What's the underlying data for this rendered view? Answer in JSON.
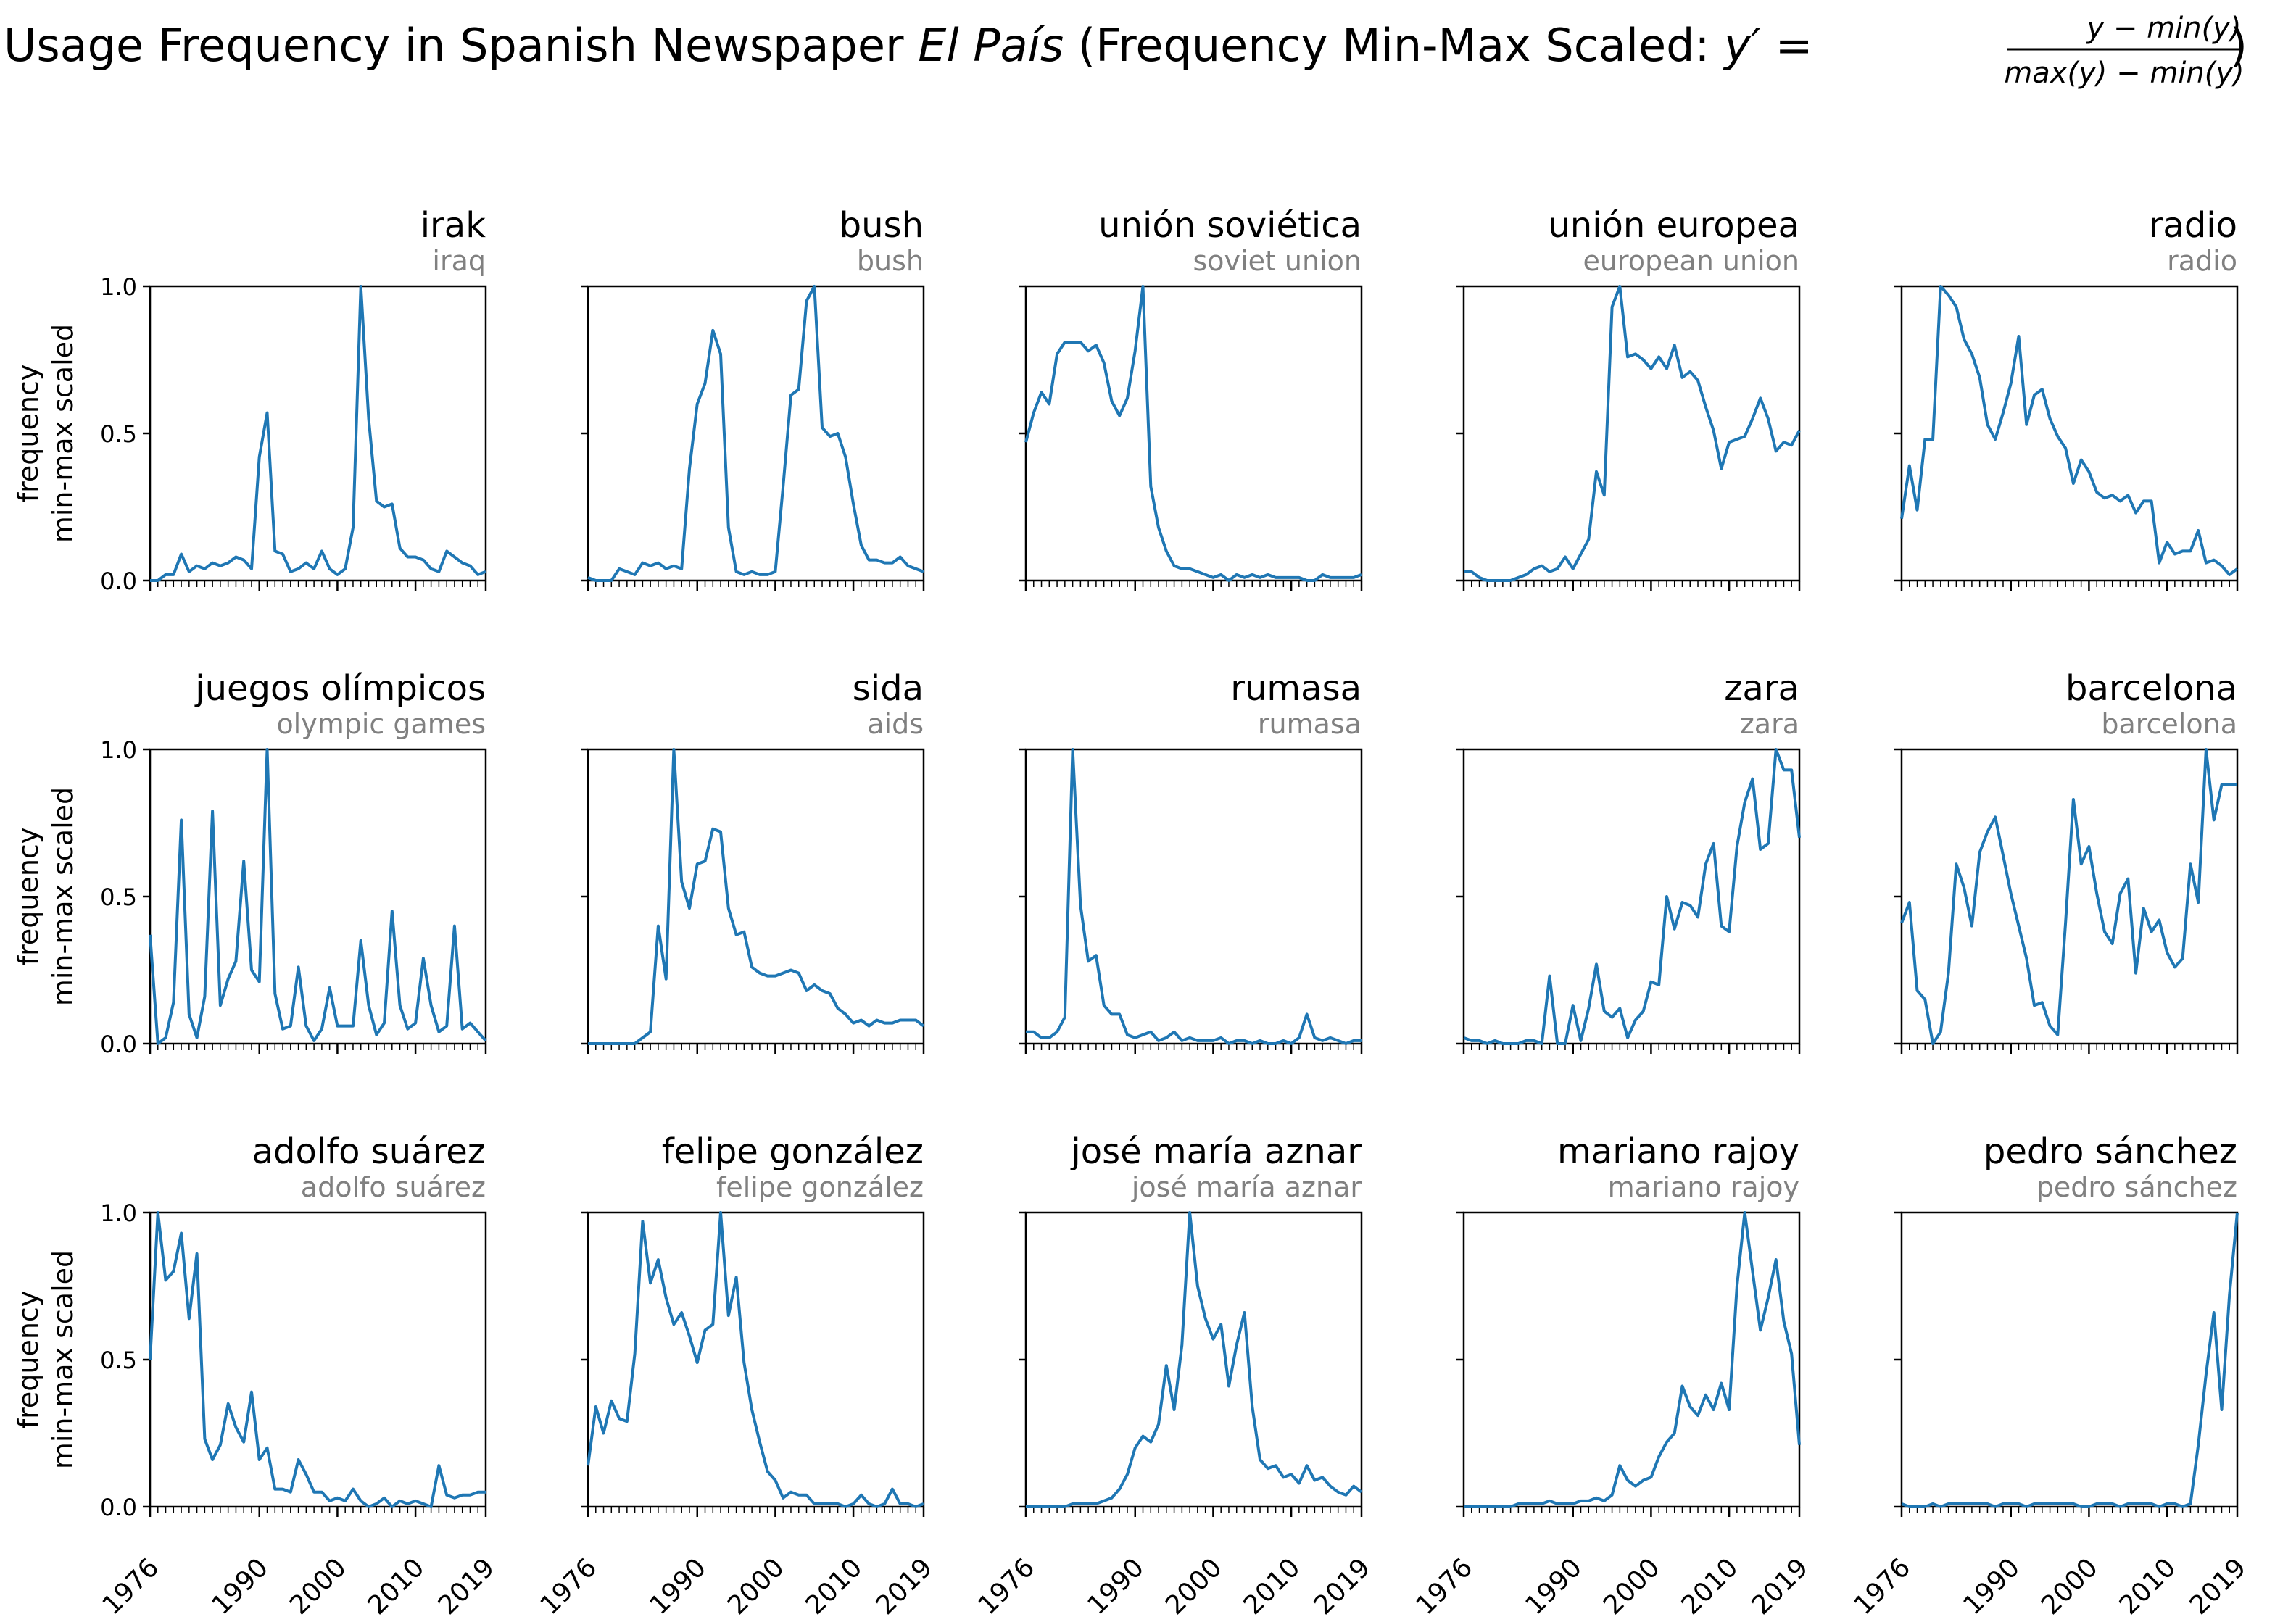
{
  "figure": {
    "title_prefix": "Word Usage Frequency in Spanish Newspaper ",
    "title_italic": "El País",
    "title_suffix": " (Frequency Min-Max Scaled: ",
    "formula_lhs": "y′ = ",
    "formula_numerator": "y − min(y)",
    "formula_denominator": "max(y) − min(y)",
    "title_close": ")",
    "ylabel_line1": "frequency",
    "ylabel_line2": "min-max scaled",
    "line_color": "#1f77b4",
    "subtitle_color": "#808080"
  },
  "chart_data": {
    "type": "line",
    "x": [
      1976,
      1977,
      1978,
      1979,
      1980,
      1981,
      1982,
      1983,
      1984,
      1985,
      1986,
      1987,
      1988,
      1989,
      1990,
      1991,
      1992,
      1993,
      1994,
      1995,
      1996,
      1997,
      1998,
      1999,
      2000,
      2001,
      2002,
      2003,
      2004,
      2005,
      2006,
      2007,
      2008,
      2009,
      2010,
      2011,
      2012,
      2013,
      2014,
      2015,
      2016,
      2017,
      2018,
      2019
    ],
    "xticks": [
      1976,
      1990,
      2000,
      2010,
      2019
    ],
    "ylim": [
      0,
      1
    ],
    "yticks": [
      "0.0",
      "0.5",
      "1.0"
    ],
    "panels": [
      {
        "title": "irak",
        "subtitle": "iraq",
        "values": [
          0.0,
          0.0,
          0.02,
          0.02,
          0.09,
          0.03,
          0.05,
          0.04,
          0.06,
          0.05,
          0.06,
          0.08,
          0.07,
          0.04,
          0.42,
          0.57,
          0.1,
          0.09,
          0.03,
          0.04,
          0.06,
          0.04,
          0.1,
          0.04,
          0.02,
          0.04,
          0.18,
          1.0,
          0.55,
          0.27,
          0.25,
          0.26,
          0.11,
          0.08,
          0.08,
          0.07,
          0.04,
          0.03,
          0.1,
          0.08,
          0.06,
          0.05,
          0.02,
          0.03
        ]
      },
      {
        "title": "bush",
        "subtitle": "bush",
        "values": [
          0.01,
          0.0,
          0.0,
          0.0,
          0.04,
          0.03,
          0.02,
          0.06,
          0.05,
          0.06,
          0.04,
          0.05,
          0.04,
          0.38,
          0.6,
          0.67,
          0.85,
          0.77,
          0.18,
          0.03,
          0.02,
          0.03,
          0.02,
          0.02,
          0.03,
          0.32,
          0.63,
          0.65,
          0.95,
          1.0,
          0.52,
          0.49,
          0.5,
          0.42,
          0.26,
          0.12,
          0.07,
          0.07,
          0.06,
          0.06,
          0.08,
          0.05,
          0.04,
          0.03
        ]
      },
      {
        "title": "unión soviética",
        "subtitle": "soviet union",
        "values": [
          0.47,
          0.57,
          0.64,
          0.6,
          0.77,
          0.81,
          0.81,
          0.81,
          0.78,
          0.8,
          0.74,
          0.61,
          0.56,
          0.62,
          0.78,
          1.0,
          0.32,
          0.18,
          0.1,
          0.05,
          0.04,
          0.04,
          0.03,
          0.02,
          0.01,
          0.02,
          0.0,
          0.02,
          0.01,
          0.02,
          0.01,
          0.02,
          0.01,
          0.01,
          0.01,
          0.01,
          0.0,
          0.0,
          0.02,
          0.01,
          0.01,
          0.01,
          0.01,
          0.02
        ]
      },
      {
        "title": "unión europea",
        "subtitle": "european union",
        "values": [
          0.03,
          0.03,
          0.01,
          0.0,
          0.0,
          0.0,
          0.0,
          0.01,
          0.02,
          0.04,
          0.05,
          0.03,
          0.04,
          0.08,
          0.04,
          0.09,
          0.14,
          0.37,
          0.29,
          0.93,
          1.0,
          0.76,
          0.77,
          0.75,
          0.72,
          0.76,
          0.72,
          0.8,
          0.69,
          0.71,
          0.68,
          0.59,
          0.51,
          0.38,
          0.47,
          0.48,
          0.49,
          0.55,
          0.62,
          0.55,
          0.44,
          0.47,
          0.46,
          0.51
        ]
      },
      {
        "title": "radio",
        "subtitle": "radio",
        "values": [
          0.21,
          0.39,
          0.24,
          0.48,
          0.48,
          1.0,
          0.97,
          0.93,
          0.82,
          0.77,
          0.69,
          0.53,
          0.48,
          0.57,
          0.67,
          0.83,
          0.53,
          0.63,
          0.65,
          0.55,
          0.49,
          0.45,
          0.33,
          0.41,
          0.37,
          0.3,
          0.28,
          0.29,
          0.27,
          0.29,
          0.23,
          0.27,
          0.27,
          0.06,
          0.13,
          0.09,
          0.1,
          0.1,
          0.17,
          0.06,
          0.07,
          0.05,
          0.02,
          0.04
        ]
      },
      {
        "title": "juegos olímpicos",
        "subtitle": "olympic games",
        "values": [
          0.37,
          0.0,
          0.02,
          0.14,
          0.76,
          0.1,
          0.02,
          0.16,
          0.79,
          0.13,
          0.22,
          0.28,
          0.62,
          0.25,
          0.21,
          1.0,
          0.17,
          0.05,
          0.06,
          0.26,
          0.06,
          0.01,
          0.05,
          0.19,
          0.06,
          0.06,
          0.06,
          0.35,
          0.13,
          0.03,
          0.07,
          0.45,
          0.13,
          0.05,
          0.07,
          0.29,
          0.13,
          0.04,
          0.06,
          0.4,
          0.05,
          0.07,
          0.04,
          0.01
        ]
      },
      {
        "title": "sida",
        "subtitle": "aids",
        "values": [
          0.0,
          0.0,
          0.0,
          0.0,
          0.0,
          0.0,
          0.0,
          0.02,
          0.04,
          0.4,
          0.22,
          1.0,
          0.55,
          0.46,
          0.61,
          0.62,
          0.73,
          0.72,
          0.46,
          0.37,
          0.38,
          0.26,
          0.24,
          0.23,
          0.23,
          0.24,
          0.25,
          0.24,
          0.18,
          0.2,
          0.18,
          0.17,
          0.12,
          0.1,
          0.07,
          0.08,
          0.06,
          0.08,
          0.07,
          0.07,
          0.08,
          0.08,
          0.08,
          0.06
        ]
      },
      {
        "title": "rumasa",
        "subtitle": "rumasa",
        "values": [
          0.04,
          0.04,
          0.02,
          0.02,
          0.04,
          0.09,
          1.0,
          0.47,
          0.28,
          0.3,
          0.13,
          0.1,
          0.1,
          0.03,
          0.02,
          0.03,
          0.04,
          0.01,
          0.02,
          0.04,
          0.01,
          0.02,
          0.01,
          0.01,
          0.01,
          0.02,
          0.0,
          0.01,
          0.01,
          0.0,
          0.01,
          0.0,
          0.0,
          0.01,
          0.0,
          0.02,
          0.1,
          0.02,
          0.01,
          0.02,
          0.01,
          0.0,
          0.01,
          0.01
        ]
      },
      {
        "title": "zara",
        "subtitle": "zara",
        "values": [
          0.02,
          0.01,
          0.01,
          0.0,
          0.01,
          0.0,
          0.0,
          0.0,
          0.01,
          0.01,
          0.0,
          0.23,
          0.0,
          0.0,
          0.13,
          0.01,
          0.12,
          0.27,
          0.11,
          0.09,
          0.12,
          0.02,
          0.08,
          0.11,
          0.21,
          0.2,
          0.5,
          0.39,
          0.48,
          0.47,
          0.43,
          0.61,
          0.68,
          0.4,
          0.38,
          0.67,
          0.82,
          0.9,
          0.66,
          0.68,
          1.0,
          0.93,
          0.93,
          0.7
        ]
      },
      {
        "title": "barcelona",
        "subtitle": "barcelona",
        "values": [
          0.41,
          0.48,
          0.18,
          0.15,
          0.0,
          0.04,
          0.24,
          0.61,
          0.53,
          0.4,
          0.65,
          0.72,
          0.77,
          0.64,
          0.51,
          0.4,
          0.29,
          0.13,
          0.14,
          0.06,
          0.03,
          0.41,
          0.83,
          0.61,
          0.67,
          0.51,
          0.38,
          0.34,
          0.51,
          0.56,
          0.24,
          0.46,
          0.38,
          0.42,
          0.31,
          0.26,
          0.29,
          0.61,
          0.48,
          1.0,
          0.76,
          0.88,
          0.88,
          0.88
        ]
      },
      {
        "title": "adolfo suárez",
        "subtitle": "adolfo suárez",
        "values": [
          0.5,
          1.0,
          0.77,
          0.8,
          0.93,
          0.64,
          0.86,
          0.23,
          0.16,
          0.21,
          0.35,
          0.27,
          0.22,
          0.39,
          0.16,
          0.2,
          0.06,
          0.06,
          0.05,
          0.16,
          0.11,
          0.05,
          0.05,
          0.02,
          0.03,
          0.02,
          0.06,
          0.02,
          0.0,
          0.01,
          0.03,
          0.0,
          0.02,
          0.01,
          0.02,
          0.01,
          0.0,
          0.14,
          0.04,
          0.03,
          0.04,
          0.04,
          0.05,
          0.05
        ]
      },
      {
        "title": "felipe gonzález",
        "subtitle": "felipe gonzález",
        "values": [
          0.14,
          0.34,
          0.25,
          0.36,
          0.3,
          0.29,
          0.52,
          0.97,
          0.76,
          0.84,
          0.71,
          0.62,
          0.66,
          0.58,
          0.49,
          0.6,
          0.62,
          1.0,
          0.65,
          0.78,
          0.49,
          0.33,
          0.22,
          0.12,
          0.09,
          0.03,
          0.05,
          0.04,
          0.04,
          0.01,
          0.01,
          0.01,
          0.01,
          0.0,
          0.01,
          0.04,
          0.01,
          0.0,
          0.01,
          0.06,
          0.01,
          0.01,
          0.0,
          0.01
        ]
      },
      {
        "title": "josé maría aznar",
        "subtitle": "josé maría aznar",
        "values": [
          0.0,
          0.0,
          0.0,
          0.0,
          0.0,
          0.0,
          0.01,
          0.01,
          0.01,
          0.01,
          0.02,
          0.03,
          0.06,
          0.11,
          0.2,
          0.24,
          0.22,
          0.28,
          0.48,
          0.33,
          0.55,
          1.0,
          0.75,
          0.64,
          0.57,
          0.62,
          0.41,
          0.55,
          0.66,
          0.34,
          0.16,
          0.13,
          0.14,
          0.1,
          0.11,
          0.08,
          0.14,
          0.09,
          0.1,
          0.07,
          0.05,
          0.04,
          0.07,
          0.05
        ]
      },
      {
        "title": "mariano rajoy",
        "subtitle": "mariano rajoy",
        "values": [
          0.0,
          0.0,
          0.0,
          0.0,
          0.0,
          0.0,
          0.0,
          0.01,
          0.01,
          0.01,
          0.01,
          0.02,
          0.01,
          0.01,
          0.01,
          0.02,
          0.02,
          0.03,
          0.02,
          0.04,
          0.14,
          0.09,
          0.07,
          0.09,
          0.1,
          0.17,
          0.22,
          0.25,
          0.41,
          0.34,
          0.31,
          0.38,
          0.33,
          0.42,
          0.33,
          0.75,
          1.0,
          0.8,
          0.6,
          0.71,
          0.84,
          0.63,
          0.52,
          0.21
        ]
      },
      {
        "title": "pedro sánchez",
        "subtitle": "pedro sánchez",
        "values": [
          0.01,
          0.0,
          0.0,
          0.0,
          0.01,
          0.0,
          0.01,
          0.01,
          0.01,
          0.01,
          0.01,
          0.01,
          0.0,
          0.01,
          0.01,
          0.01,
          0.0,
          0.01,
          0.01,
          0.01,
          0.01,
          0.01,
          0.01,
          0.0,
          0.0,
          0.01,
          0.01,
          0.01,
          0.0,
          0.01,
          0.01,
          0.01,
          0.01,
          0.0,
          0.01,
          0.01,
          0.0,
          0.01,
          0.21,
          0.45,
          0.66,
          0.33,
          0.72,
          1.0
        ]
      }
    ]
  }
}
